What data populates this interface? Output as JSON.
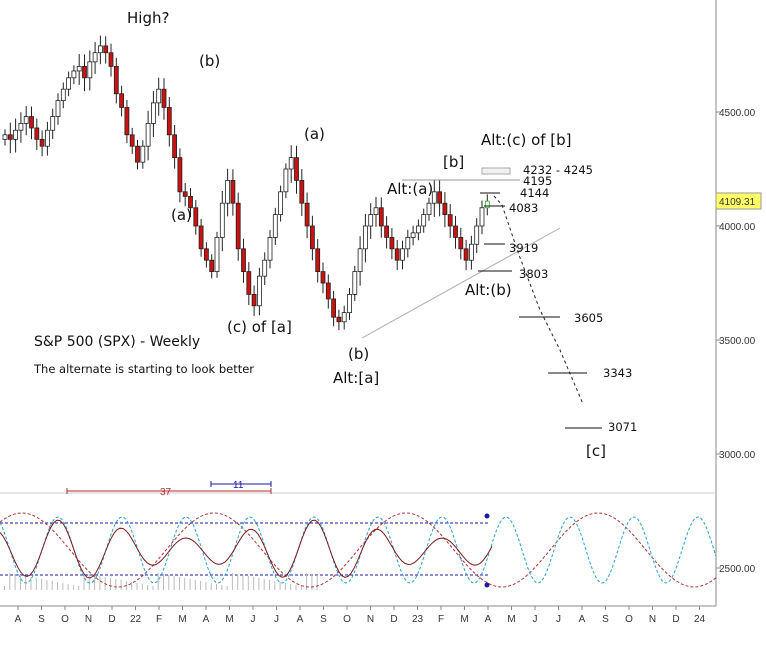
{
  "chart_data": {
    "type": "candlestick",
    "title": "S&P 500 (SPX) - Weekly",
    "subtitle": "The alternate is starting to look better",
    "current_price": "4109.31",
    "y_ticks": [
      "4500.00",
      "4000.00",
      "3500.00",
      "3000.00"
    ],
    "osc_ticks": [
      "2500.00"
    ],
    "x_labels": [
      "A",
      "S",
      "O",
      "N",
      "D",
      "22",
      "F",
      "M",
      "A",
      "M",
      "J",
      "J",
      "A",
      "S",
      "O",
      "N",
      "D",
      "23",
      "F",
      "M",
      "A",
      "M",
      "J",
      "J",
      "A",
      "S",
      "O",
      "N",
      "D",
      "24"
    ],
    "wave_labels": [
      "High?",
      "(b)",
      "(a)",
      "(c) of [a]",
      "(a)",
      "(b)",
      "Alt:[a]",
      "Alt:(a)",
      "[b]",
      "Alt:(c) of [b]",
      "Alt:(b)",
      "[c]"
    ],
    "levels": [
      "4232 - 4245",
      "4195",
      "4144",
      "4083",
      "3919",
      "3803",
      "3605",
      "3343",
      "3071"
    ],
    "cycle_labels": [
      "37",
      "11"
    ],
    "weekly_close_path": [
      4400,
      4380,
      4420,
      4450,
      4480,
      4430,
      4380,
      4350,
      4420,
      4480,
      4550,
      4600,
      4650,
      4680,
      4700,
      4650,
      4720,
      4760,
      4790,
      4760,
      4700,
      4580,
      4520,
      4400,
      4350,
      4280,
      4350,
      4450,
      4540,
      4600,
      4520,
      4400,
      4300,
      4150,
      4130,
      4080,
      4000,
      3900,
      3850,
      3800,
      3950,
      4100,
      4200,
      4100,
      3900,
      3800,
      3700,
      3650,
      3780,
      3850,
      3950,
      4050,
      4150,
      4250,
      4300,
      4200,
      4100,
      4000,
      3900,
      3800,
      3750,
      3680,
      3600,
      3580,
      3620,
      3700,
      3800,
      3900,
      4000,
      4050,
      4080,
      4000,
      3950,
      3900,
      3850,
      3900,
      3950,
      3970,
      4000,
      4050,
      4100,
      4150,
      4100,
      4050,
      4000,
      3950,
      3900,
      3850,
      3920,
      4000,
      4080,
      4109
    ]
  }
}
